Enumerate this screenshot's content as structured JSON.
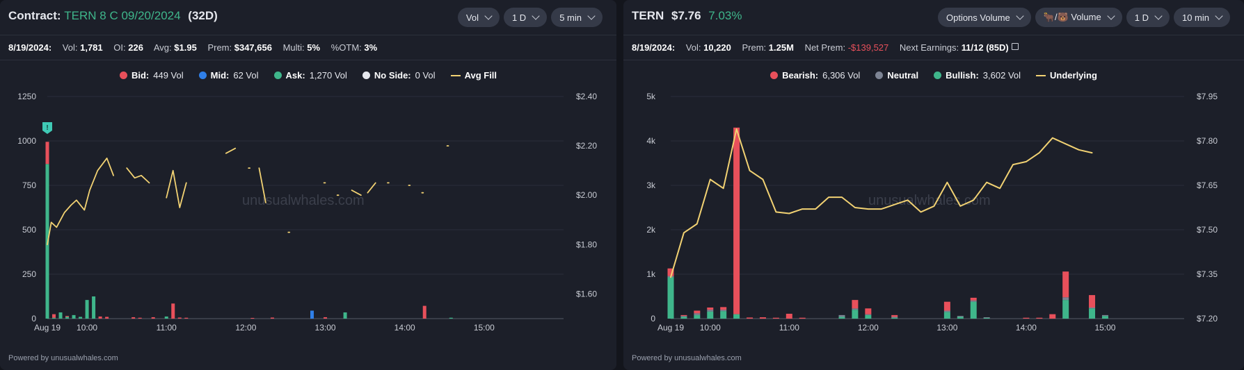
{
  "left": {
    "contract_label": "Contract:",
    "contract_value": "TERN 8 C 09/20/2024",
    "dte": "(32D)",
    "controls": [
      "Vol",
      "1 D",
      "5 min"
    ],
    "info": {
      "date": "8/19/2024:",
      "vol_label": "Vol:",
      "vol": "1,781",
      "oi_label": "OI:",
      "oi": "226",
      "avg_label": "Avg:",
      "avg": "$1.95",
      "prem_label": "Prem:",
      "prem": "$347,656",
      "multi_label": "Multi:",
      "multi": "5%",
      "otm_label": "%OTM:",
      "otm": "3%"
    },
    "legend": [
      {
        "label": "Bid:",
        "value": "449 Vol",
        "color": "#e8505b"
      },
      {
        "label": "Mid:",
        "value": "62 Vol",
        "color": "#2f7fe8"
      },
      {
        "label": "Ask:",
        "value": "1,270 Vol",
        "color": "#3fb68b"
      },
      {
        "label": "No Side:",
        "value": "0 Vol",
        "color": "#e6e8ee"
      }
    ],
    "legend_line": "Avg Fill",
    "marker_text": "!",
    "watermark": "unusualwhales.com",
    "footer": "Powered by unusualwhales.com"
  },
  "right": {
    "ticker": "TERN",
    "price": "$7.76",
    "change": "7.03%",
    "controls": [
      "Options Volume",
      "🐂/🐻 Volume",
      "1 D",
      "10 min"
    ],
    "info": {
      "date": "8/19/2024:",
      "vol_label": "Vol:",
      "vol": "10,220",
      "prem_label": "Prem:",
      "prem": "1.25M",
      "net_label": "Net Prem:",
      "net": "-$139,527",
      "earn_label": "Next Earnings:",
      "earn": "11/12 (85D)"
    },
    "legend": [
      {
        "label": "Bearish:",
        "value": "6,306 Vol",
        "color": "#e8505b"
      },
      {
        "label": "Neutral",
        "value": "",
        "color": "#7d8494"
      },
      {
        "label": "Bullish:",
        "value": "3,602 Vol",
        "color": "#3fb68b"
      }
    ],
    "legend_line": "Underlying",
    "watermark": "unusualwhales.com",
    "footer": "Powered by unusualwhales.com"
  },
  "chart_data": [
    {
      "type": "bar",
      "title": "",
      "x_ticks": [
        "Aug 19",
        "10:00",
        "11:00",
        "12:00",
        "13:00",
        "14:00",
        "15:00"
      ],
      "x_range_minutes": [
        570,
        960
      ],
      "ylim": [
        0,
        1250
      ],
      "y_ticks": [
        "0",
        "250",
        "500",
        "750",
        "1000",
        "1250"
      ],
      "y2lim": [
        1.5,
        2.4
      ],
      "y2_ticks": [
        "$1.60",
        "$1.80",
        "$2.00",
        "$2.20",
        "$2.40"
      ],
      "stacked_order": [
        "Ask",
        "Mid",
        "Bid"
      ],
      "bars": [
        {
          "t": 570,
          "ask": 870,
          "mid": 0,
          "bid": 125
        },
        {
          "t": 575,
          "ask": 5,
          "mid": 0,
          "bid": 20
        },
        {
          "t": 580,
          "ask": 35,
          "mid": 0,
          "bid": 0
        },
        {
          "t": 585,
          "ask": 10,
          "mid": 0,
          "bid": 5
        },
        {
          "t": 590,
          "ask": 20,
          "mid": 0,
          "bid": 0
        },
        {
          "t": 595,
          "ask": 10,
          "mid": 0,
          "bid": 0
        },
        {
          "t": 600,
          "ask": 105,
          "mid": 0,
          "bid": 0
        },
        {
          "t": 605,
          "ask": 125,
          "mid": 0,
          "bid": 0
        },
        {
          "t": 610,
          "ask": 0,
          "mid": 0,
          "bid": 12
        },
        {
          "t": 615,
          "ask": 0,
          "mid": 0,
          "bid": 10
        },
        {
          "t": 635,
          "ask": 0,
          "mid": 0,
          "bid": 8
        },
        {
          "t": 640,
          "ask": 0,
          "mid": 0,
          "bid": 5
        },
        {
          "t": 650,
          "ask": 0,
          "mid": 0,
          "bid": 8
        },
        {
          "t": 660,
          "ask": 12,
          "mid": 0,
          "bid": 0
        },
        {
          "t": 665,
          "ask": 0,
          "mid": 0,
          "bid": 85
        },
        {
          "t": 670,
          "ask": 0,
          "mid": 0,
          "bid": 6
        },
        {
          "t": 675,
          "ask": 0,
          "mid": 0,
          "bid": 5
        },
        {
          "t": 725,
          "ask": 0,
          "mid": 0,
          "bid": 4
        },
        {
          "t": 740,
          "ask": 0,
          "mid": 0,
          "bid": 6
        },
        {
          "t": 770,
          "ask": 0,
          "mid": 45,
          "bid": 0
        },
        {
          "t": 780,
          "ask": 0,
          "mid": 0,
          "bid": 8
        },
        {
          "t": 795,
          "ask": 35,
          "mid": 0,
          "bid": 0
        },
        {
          "t": 855,
          "ask": 0,
          "mid": 0,
          "bid": 72
        },
        {
          "t": 875,
          "ask": 5,
          "mid": 0,
          "bid": 0
        }
      ],
      "avg_fill_segments": [
        [
          [
            570,
            1.8
          ],
          [
            573,
            1.89
          ],
          [
            577,
            1.87
          ],
          [
            583,
            1.93
          ],
          [
            588,
            1.96
          ],
          [
            592,
            1.98
          ],
          [
            598,
            1.94
          ],
          [
            602,
            2.02
          ],
          [
            608,
            2.1
          ],
          [
            615,
            2.15
          ],
          [
            620,
            2.08
          ]
        ],
        [
          [
            630,
            2.11
          ],
          [
            636,
            2.07
          ],
          [
            641,
            2.08
          ],
          [
            647,
            2.05
          ]
        ],
        [
          [
            660,
            1.99
          ],
          [
            665,
            2.1
          ],
          [
            670,
            1.95
          ],
          [
            675,
            2.05
          ]
        ],
        [
          [
            705,
            2.17
          ],
          [
            712,
            2.19
          ]
        ],
        [
          [
            722,
            2.11
          ],
          [
            723,
            2.11
          ]
        ],
        [
          [
            730,
            2.11
          ],
          [
            735,
            1.97
          ]
        ],
        [
          [
            752,
            1.85
          ],
          [
            753,
            1.85
          ]
        ],
        [
          [
            779,
            2.05
          ],
          [
            780,
            2.05
          ]
        ],
        [
          [
            789,
            2.0
          ],
          [
            790,
            2.0
          ]
        ],
        [
          [
            800,
            2.02
          ],
          [
            807,
            2.0
          ]
        ],
        [
          [
            812,
            2.01
          ],
          [
            818,
            2.05
          ]
        ],
        [
          [
            827,
            2.05
          ],
          [
            828,
            2.05
          ]
        ],
        [
          [
            843,
            2.04
          ],
          [
            844,
            2.04
          ]
        ],
        [
          [
            853,
            2.01
          ],
          [
            854,
            2.01
          ]
        ],
        [
          [
            872,
            2.2
          ],
          [
            873,
            2.2
          ]
        ]
      ],
      "legend_placement": "top-center",
      "grid": true
    },
    {
      "type": "bar",
      "title": "",
      "x_ticks": [
        "Aug 19",
        "10:00",
        "11:00",
        "12:00",
        "13:00",
        "14:00",
        "15:00"
      ],
      "x_range_minutes": [
        570,
        960
      ],
      "ylim": [
        0,
        5000
      ],
      "y_ticks": [
        "0",
        "1k",
        "2k",
        "3k",
        "4k",
        "5k"
      ],
      "y2lim": [
        7.2,
        7.95
      ],
      "y2_ticks": [
        "$7.20",
        "$7.35",
        "$7.50",
        "$7.65",
        "$7.80",
        "$7.95"
      ],
      "stacked_order": [
        "Bullish",
        "Neutral",
        "Bearish"
      ],
      "bars": [
        {
          "t": 570,
          "bull": 930,
          "neu": 30,
          "bear": 170
        },
        {
          "t": 580,
          "bull": 40,
          "neu": 20,
          "bear": 20
        },
        {
          "t": 590,
          "bull": 80,
          "neu": 40,
          "bear": 60
        },
        {
          "t": 600,
          "bull": 160,
          "neu": 40,
          "bear": 50
        },
        {
          "t": 610,
          "bull": 170,
          "neu": 30,
          "bear": 60
        },
        {
          "t": 620,
          "bull": 100,
          "neu": 0,
          "bear": 4200
        },
        {
          "t": 630,
          "bull": 0,
          "neu": 0,
          "bear": 25
        },
        {
          "t": 640,
          "bull": 0,
          "neu": 0,
          "bear": 30
        },
        {
          "t": 650,
          "bull": 0,
          "neu": 0,
          "bear": 20
        },
        {
          "t": 660,
          "bull": 0,
          "neu": 0,
          "bear": 110
        },
        {
          "t": 670,
          "bull": 0,
          "neu": 0,
          "bear": 20
        },
        {
          "t": 700,
          "bull": 40,
          "neu": 40,
          "bear": 0
        },
        {
          "t": 710,
          "bull": 200,
          "neu": 30,
          "bear": 190
        },
        {
          "t": 720,
          "bull": 80,
          "neu": 20,
          "bear": 130
        },
        {
          "t": 740,
          "bull": 20,
          "neu": 20,
          "bear": 40
        },
        {
          "t": 780,
          "bull": 150,
          "neu": 30,
          "bear": 200
        },
        {
          "t": 790,
          "bull": 40,
          "neu": 20,
          "bear": 0
        },
        {
          "t": 800,
          "bull": 380,
          "neu": 30,
          "bear": 60
        },
        {
          "t": 810,
          "bull": 20,
          "neu": 10,
          "bear": 0
        },
        {
          "t": 840,
          "bull": 0,
          "neu": 0,
          "bear": 20
        },
        {
          "t": 850,
          "bull": 0,
          "neu": 0,
          "bear": 20
        },
        {
          "t": 860,
          "bull": 0,
          "neu": 0,
          "bear": 100
        },
        {
          "t": 870,
          "bull": 420,
          "neu": 60,
          "bear": 580
        },
        {
          "t": 890,
          "bull": 230,
          "neu": 20,
          "bear": 280
        },
        {
          "t": 900,
          "bull": 60,
          "neu": 20,
          "bear": 0
        }
      ],
      "underlying": [
        [
          570,
          7.34
        ],
        [
          580,
          7.49
        ],
        [
          590,
          7.52
        ],
        [
          600,
          7.67
        ],
        [
          610,
          7.64
        ],
        [
          620,
          7.84
        ],
        [
          630,
          7.7
        ],
        [
          640,
          7.67
        ],
        [
          650,
          7.56
        ],
        [
          660,
          7.555
        ],
        [
          670,
          7.57
        ],
        [
          680,
          7.57
        ],
        [
          690,
          7.61
        ],
        [
          700,
          7.61
        ],
        [
          710,
          7.575
        ],
        [
          720,
          7.57
        ],
        [
          730,
          7.57
        ],
        [
          740,
          7.585
        ],
        [
          750,
          7.6
        ],
        [
          760,
          7.56
        ],
        [
          770,
          7.58
        ],
        [
          780,
          7.66
        ],
        [
          790,
          7.58
        ],
        [
          800,
          7.6
        ],
        [
          810,
          7.66
        ],
        [
          820,
          7.64
        ],
        [
          830,
          7.72
        ],
        [
          840,
          7.73
        ],
        [
          850,
          7.76
        ],
        [
          860,
          7.81
        ],
        [
          870,
          7.79
        ],
        [
          880,
          7.77
        ],
        [
          890,
          7.76
        ]
      ],
      "legend_placement": "top-center",
      "grid": true
    }
  ]
}
